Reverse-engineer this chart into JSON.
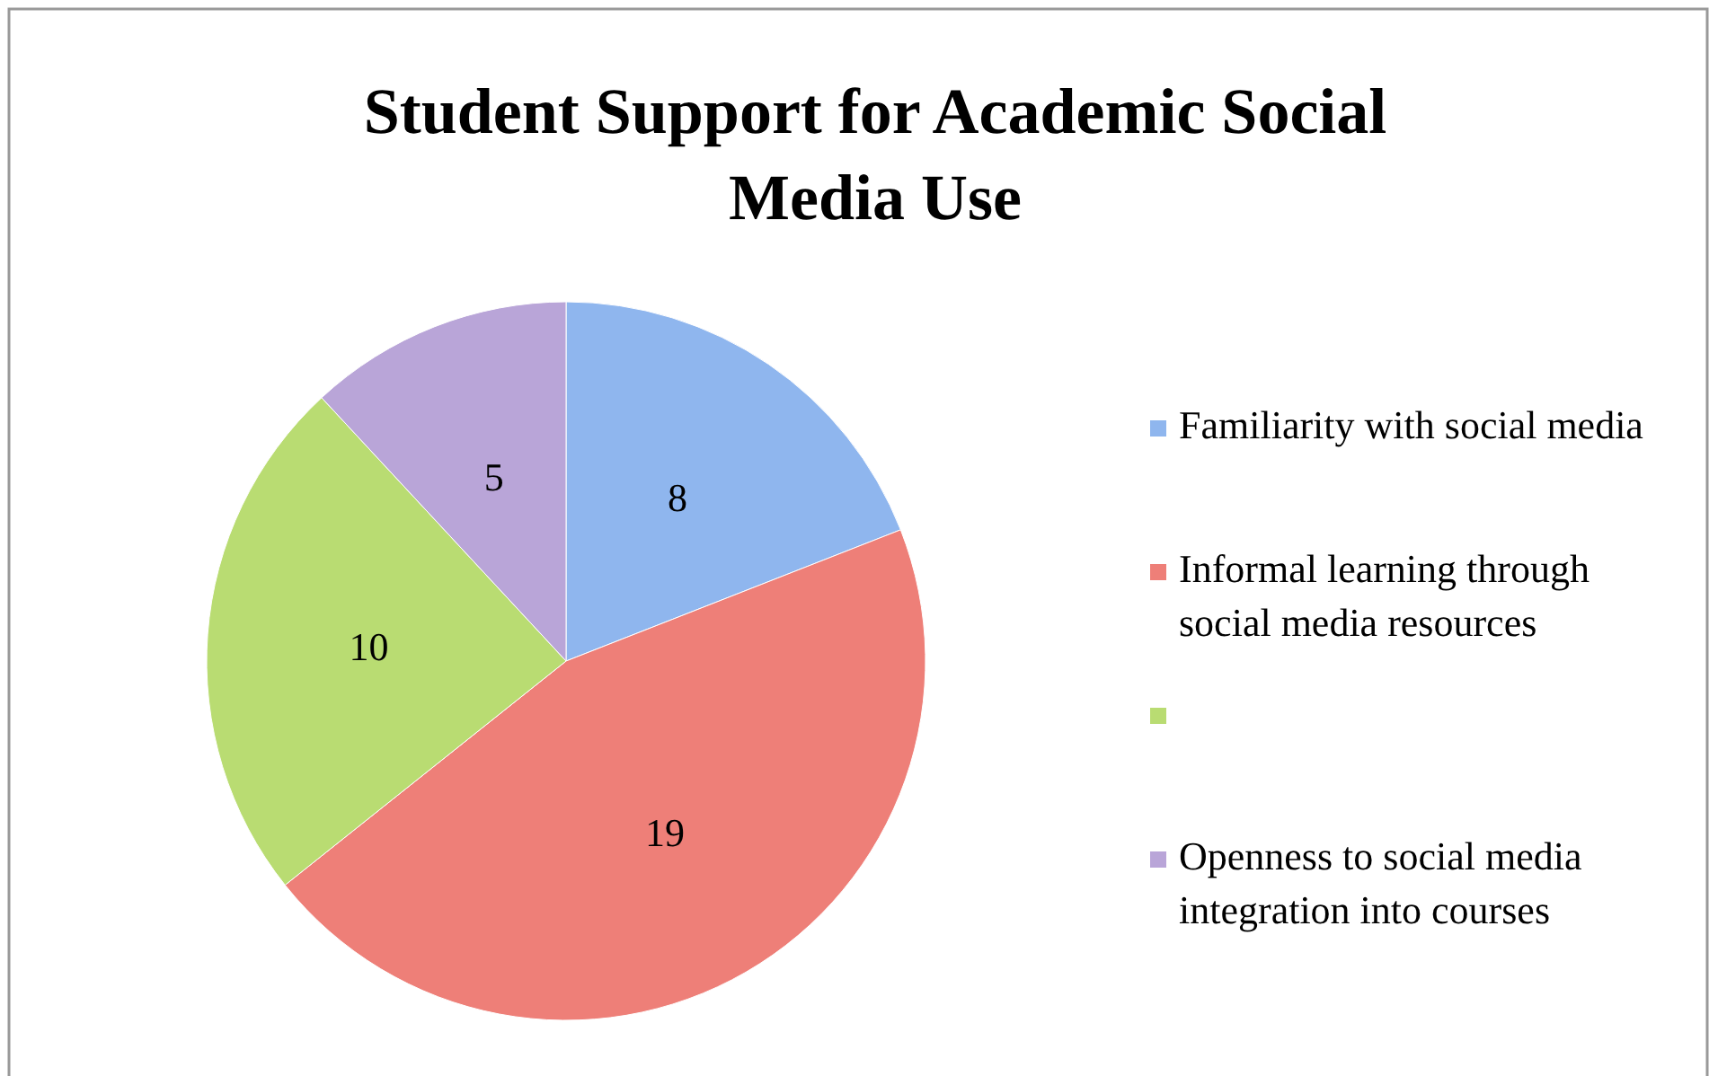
{
  "chart_data": {
    "type": "pie",
    "title": "Student Support for Academic Social Media Use",
    "categories": [
      "Familiarity with social media",
      "Informal learning through social media resources",
      null,
      "Openness to social media integration into courses"
    ],
    "values": [
      8,
      19,
      10,
      5
    ],
    "colors": [
      "#8fb6ee",
      "#ee7f78",
      "#b9dc72",
      "#b9a5d8"
    ],
    "data_labels": true,
    "legend": "right"
  }
}
